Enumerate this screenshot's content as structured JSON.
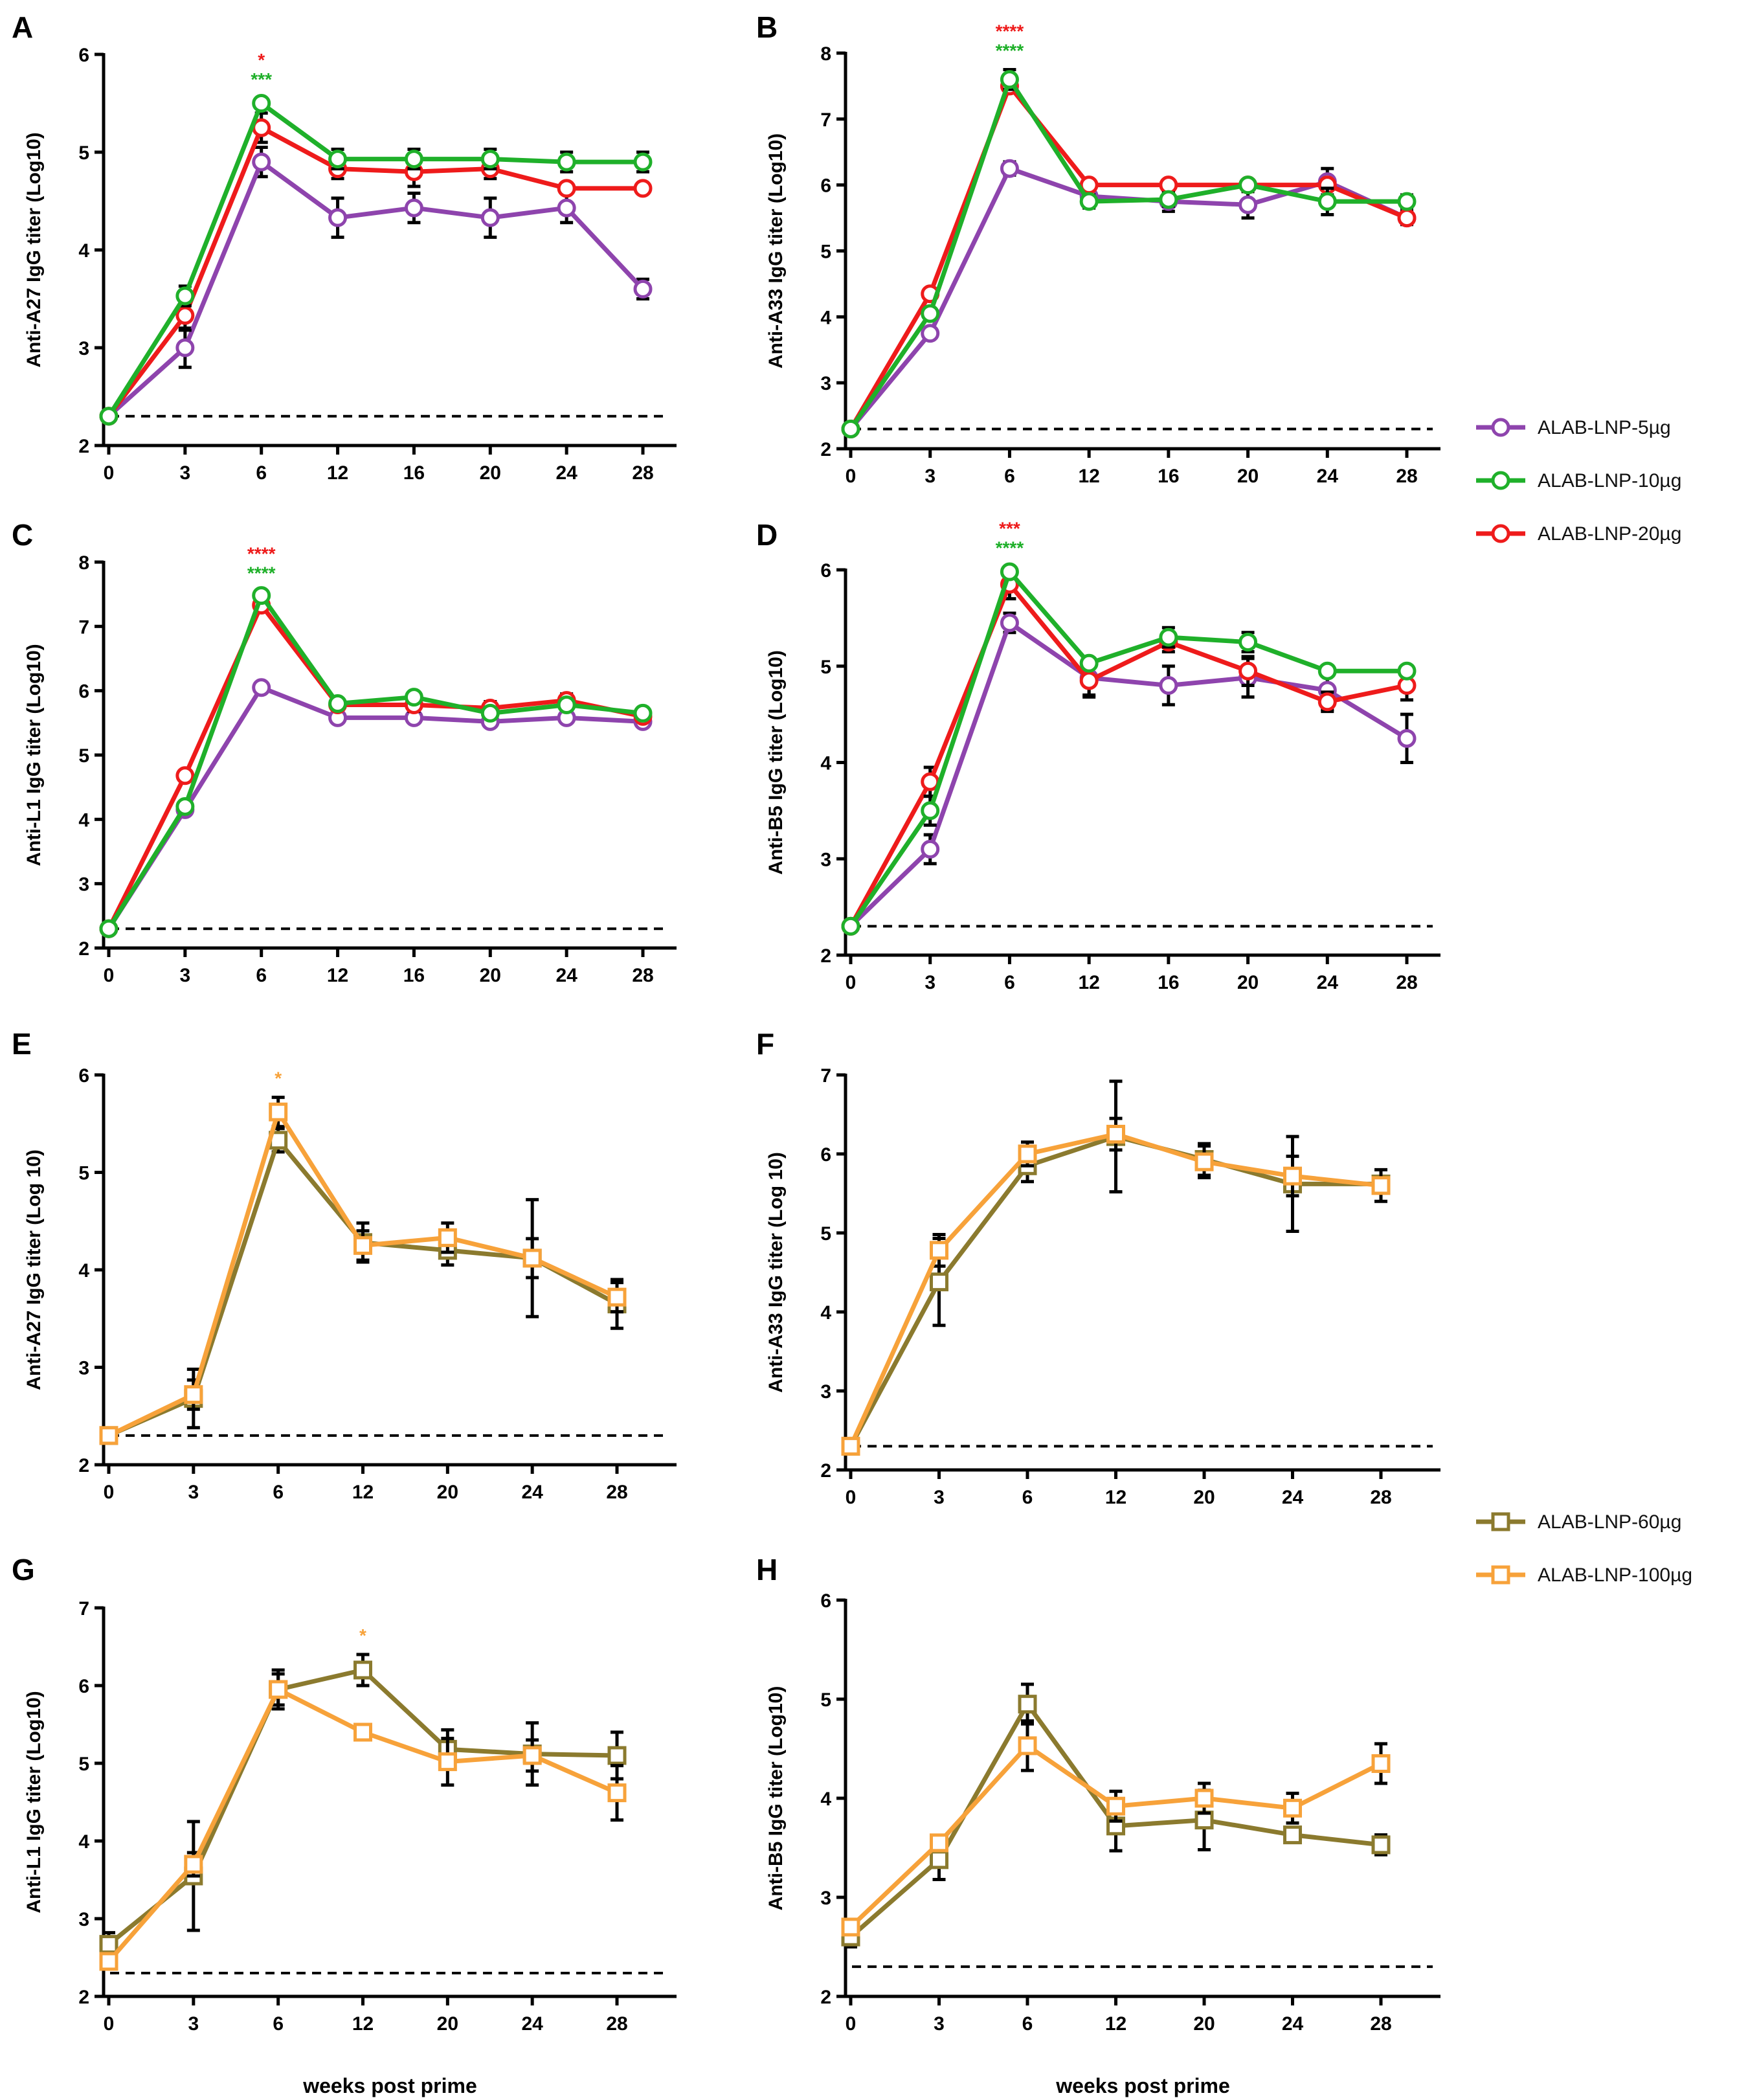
{
  "colors": {
    "ALAB-LNP-5µg": "#8E44AD",
    "ALAB-LNP-10µg": "#1FB02A",
    "ALAB-LNP-20µg": "#EE1B1B",
    "ALAB-LNP-60µg": "#8B7A2E",
    "ALAB-LNP-100µg": "#F7A23A"
  },
  "legends": [
    {
      "id": "legend-top",
      "items": [
        "ALAB-LNP-5µg",
        "ALAB-LNP-10µg",
        "ALAB-LNP-20µg"
      ]
    },
    {
      "id": "legend-bottom",
      "items": [
        "ALAB-LNP-60µg",
        "ALAB-LNP-100µg"
      ]
    }
  ],
  "chart_data": [
    {
      "panel": "A",
      "type": "line",
      "marker": "circle",
      "ylabel": "Anti-A27 IgG titer (Log10)",
      "xlabel": "",
      "categories": [
        "0",
        "3",
        "6",
        "12",
        "16",
        "20",
        "24",
        "28"
      ],
      "ylim": [
        2,
        6
      ],
      "yticks": [
        2,
        3,
        4,
        5,
        6
      ],
      "baseline": 2.3,
      "series": [
        {
          "name": "ALAB-LNP-5µg",
          "values": [
            2.3,
            3.0,
            4.9,
            4.33,
            4.43,
            4.33,
            4.43,
            3.6
          ],
          "errors": [
            0,
            0.2,
            0.15,
            0.2,
            0.15,
            0.2,
            0.15,
            0.1
          ]
        },
        {
          "name": "ALAB-LNP-20µg",
          "values": [
            2.3,
            3.33,
            5.25,
            4.83,
            4.8,
            4.83,
            4.63,
            4.63
          ],
          "errors": [
            0,
            0.15,
            0.15,
            0.1,
            0.15,
            0.1,
            0.05,
            0.05
          ]
        },
        {
          "name": "ALAB-LNP-10µg",
          "values": [
            2.3,
            3.53,
            5.5,
            4.93,
            4.93,
            4.93,
            4.9,
            4.9
          ],
          "errors": [
            0,
            0.1,
            0.05,
            0.1,
            0.1,
            0.1,
            0.1,
            0.1
          ]
        }
      ],
      "stars": [
        {
          "at": "6",
          "text": "*",
          "series": "ALAB-LNP-20µg"
        },
        {
          "at": "6",
          "text": "***",
          "series": "ALAB-LNP-10µg"
        }
      ]
    },
    {
      "panel": "B",
      "type": "line",
      "marker": "circle",
      "ylabel": "Anti-A33 IgG titer (Log10)",
      "xlabel": "",
      "categories": [
        "0",
        "3",
        "6",
        "12",
        "16",
        "20",
        "24",
        "28"
      ],
      "ylim": [
        2,
        8
      ],
      "yticks": [
        2,
        3,
        4,
        5,
        6,
        7,
        8
      ],
      "baseline": 2.3,
      "series": [
        {
          "name": "ALAB-LNP-5µg",
          "values": [
            2.3,
            3.75,
            6.25,
            5.83,
            5.75,
            5.7,
            6.05,
            5.5
          ],
          "errors": [
            0,
            0.05,
            0.1,
            0.1,
            0.15,
            0.2,
            0.2,
            0.1
          ]
        },
        {
          "name": "ALAB-LNP-20µg",
          "values": [
            2.3,
            4.35,
            7.5,
            6.0,
            6.0,
            6.0,
            6.0,
            5.5
          ],
          "errors": [
            0,
            0.05,
            0.1,
            0,
            0,
            0,
            0,
            0
          ]
        },
        {
          "name": "ALAB-LNP-10µg",
          "values": [
            2.3,
            4.05,
            7.6,
            5.75,
            5.78,
            6.0,
            5.75,
            5.75
          ],
          "errors": [
            0,
            0.05,
            0.15,
            0.1,
            0.1,
            0,
            0.2,
            0.1
          ]
        }
      ],
      "stars": [
        {
          "at": "6",
          "text": "****",
          "series": "ALAB-LNP-20µg"
        },
        {
          "at": "6",
          "text": "****",
          "series": "ALAB-LNP-10µg"
        }
      ]
    },
    {
      "panel": "C",
      "type": "line",
      "marker": "circle",
      "ylabel": "Anti-L1 IgG titer (Log10)",
      "xlabel": "",
      "categories": [
        "0",
        "3",
        "6",
        "12",
        "16",
        "20",
        "24",
        "28"
      ],
      "ylim": [
        2,
        8
      ],
      "yticks": [
        2,
        3,
        4,
        5,
        6,
        7,
        8
      ],
      "baseline": 2.3,
      "series": [
        {
          "name": "ALAB-LNP-5µg",
          "values": [
            2.3,
            4.15,
            6.05,
            5.58,
            5.58,
            5.52,
            5.58,
            5.52
          ],
          "errors": [
            0,
            0.05,
            0.05,
            0.05,
            0.05,
            0.05,
            0.05,
            0.05
          ]
        },
        {
          "name": "ALAB-LNP-20µg",
          "values": [
            2.3,
            4.68,
            7.33,
            5.78,
            5.78,
            5.73,
            5.85,
            5.6
          ],
          "errors": [
            0,
            0.05,
            0.1,
            0.05,
            0.1,
            0.1,
            0.1,
            0.05
          ]
        },
        {
          "name": "ALAB-LNP-10µg",
          "values": [
            2.3,
            4.2,
            7.48,
            5.8,
            5.9,
            5.65,
            5.78,
            5.65
          ],
          "errors": [
            0,
            0.05,
            0.05,
            0.05,
            0.05,
            0.05,
            0.05,
            0.05
          ]
        }
      ],
      "stars": [
        {
          "at": "6",
          "text": "****",
          "series": "ALAB-LNP-20µg"
        },
        {
          "at": "6",
          "text": "****",
          "series": "ALAB-LNP-10µg"
        }
      ]
    },
    {
      "panel": "D",
      "type": "line",
      "marker": "circle",
      "ylabel": "Anti-B5 IgG titer (Log10)",
      "xlabel": "",
      "categories": [
        "0",
        "3",
        "6",
        "12",
        "16",
        "20",
        "24",
        "28"
      ],
      "ylim": [
        2,
        6
      ],
      "yticks": [
        2,
        3,
        4,
        5,
        6
      ],
      "baseline": 2.3,
      "series": [
        {
          "name": "ALAB-LNP-5µg",
          "values": [
            2.3,
            3.1,
            5.45,
            4.88,
            4.8,
            4.88,
            4.75,
            4.25
          ],
          "errors": [
            0,
            0.15,
            0.1,
            0.2,
            0.2,
            0.2,
            0.2,
            0.25
          ]
        },
        {
          "name": "ALAB-LNP-20µg",
          "values": [
            2.3,
            3.8,
            5.85,
            4.85,
            5.25,
            4.95,
            4.63,
            4.8
          ],
          "errors": [
            0,
            0.15,
            0.15,
            0.15,
            0.1,
            0.15,
            0.1,
            0.15
          ]
        },
        {
          "name": "ALAB-LNP-10µg",
          "values": [
            2.3,
            3.5,
            5.98,
            5.03,
            5.3,
            5.25,
            4.95,
            4.95
          ],
          "errors": [
            0,
            0.15,
            0.05,
            0.05,
            0.1,
            0.1,
            0.05,
            0.05
          ]
        }
      ],
      "stars": [
        {
          "at": "6",
          "text": "***",
          "series": "ALAB-LNP-20µg"
        },
        {
          "at": "6",
          "text": "****",
          "series": "ALAB-LNP-10µg"
        }
      ]
    },
    {
      "panel": "E",
      "type": "line",
      "marker": "square",
      "ylabel": "Anti-A27 IgG titer (Log 10)",
      "xlabel": "",
      "categories": [
        "0",
        "3",
        "6",
        "12",
        "20",
        "24",
        "28"
      ],
      "ylim": [
        2,
        6
      ],
      "yticks": [
        2,
        3,
        4,
        5,
        6
      ],
      "baseline": 2.3,
      "series": [
        {
          "name": "ALAB-LNP-60µg",
          "values": [
            2.3,
            2.68,
            5.33,
            4.28,
            4.2,
            4.12,
            3.65
          ],
          "errors": [
            0,
            0.3,
            0.12,
            0.2,
            0.15,
            0.6,
            0.25
          ]
        },
        {
          "name": "ALAB-LNP-100µg",
          "values": [
            2.3,
            2.72,
            5.62,
            4.25,
            4.33,
            4.12,
            3.72
          ],
          "errors": [
            0,
            0.15,
            0.15,
            0.15,
            0.15,
            0.2,
            0.15
          ]
        }
      ],
      "stars": [
        {
          "at": "6",
          "text": "*",
          "series": "ALAB-LNP-100µg"
        }
      ]
    },
    {
      "panel": "F",
      "type": "line",
      "marker": "square",
      "ylabel": "Anti-A33 IgG titer (Log 10)",
      "xlabel": "",
      "categories": [
        "0",
        "3",
        "6",
        "12",
        "20",
        "24",
        "28"
      ],
      "ylim": [
        2,
        7
      ],
      "yticks": [
        2,
        3,
        4,
        5,
        6,
        7
      ],
      "baseline": 2.3,
      "series": [
        {
          "name": "ALAB-LNP-60µg",
          "values": [
            2.3,
            4.38,
            5.85,
            6.22,
            5.93,
            5.62,
            5.62
          ],
          "errors": [
            0,
            0.55,
            0.2,
            0.7,
            0.2,
            0.6,
            0.05
          ]
        },
        {
          "name": "ALAB-LNP-100µg",
          "values": [
            2.3,
            4.78,
            6.0,
            6.25,
            5.9,
            5.72,
            5.6
          ],
          "errors": [
            0,
            0.2,
            0.15,
            0.2,
            0.2,
            0.25,
            0.2
          ]
        }
      ],
      "stars": []
    },
    {
      "panel": "G",
      "type": "line",
      "marker": "square",
      "ylabel": "Anti-L1 IgG titer (Log10)",
      "xlabel": "weeks post prime",
      "categories": [
        "0",
        "3",
        "6",
        "12",
        "20",
        "24",
        "28"
      ],
      "ylim": [
        2,
        7
      ],
      "yticks": [
        2,
        3,
        4,
        5,
        6,
        7
      ],
      "baseline": 2.3,
      "series": [
        {
          "name": "ALAB-LNP-60µg",
          "values": [
            2.67,
            3.55,
            5.95,
            6.2,
            5.18,
            5.12,
            5.1
          ],
          "errors": [
            0.15,
            0.7,
            0.25,
            0.2,
            0.25,
            0.4,
            0.3
          ]
        },
        {
          "name": "ALAB-LNP-100µg",
          "values": [
            2.45,
            3.7,
            5.95,
            5.4,
            5.02,
            5.1,
            4.62
          ],
          "errors": [
            0.1,
            0.15,
            0.2,
            0.1,
            0.3,
            0.2,
            0.35
          ]
        }
      ],
      "stars": [
        {
          "at": "12",
          "text": "*",
          "series": "ALAB-LNP-100µg"
        }
      ]
    },
    {
      "panel": "H",
      "type": "line",
      "marker": "square",
      "ylabel": "Anti-B5 IgG titer (Log10)",
      "xlabel": "weeks post prime",
      "categories": [
        "0",
        "3",
        "6",
        "12",
        "20",
        "24",
        "28"
      ],
      "ylim": [
        2,
        6
      ],
      "yticks": [
        2,
        3,
        4,
        5,
        6
      ],
      "baseline": 2.3,
      "series": [
        {
          "name": "ALAB-LNP-60µg",
          "values": [
            2.6,
            3.38,
            4.95,
            3.72,
            3.78,
            3.63,
            3.53
          ],
          "errors": [
            0.1,
            0.2,
            0.2,
            0.25,
            0.3,
            0.05,
            0.1
          ]
        },
        {
          "name": "ALAB-LNP-100µg",
          "values": [
            2.7,
            3.55,
            4.53,
            3.92,
            4.0,
            3.9,
            4.35
          ],
          "errors": [
            0.05,
            0.05,
            0.25,
            0.15,
            0.15,
            0.15,
            0.2
          ]
        }
      ],
      "stars": []
    }
  ]
}
